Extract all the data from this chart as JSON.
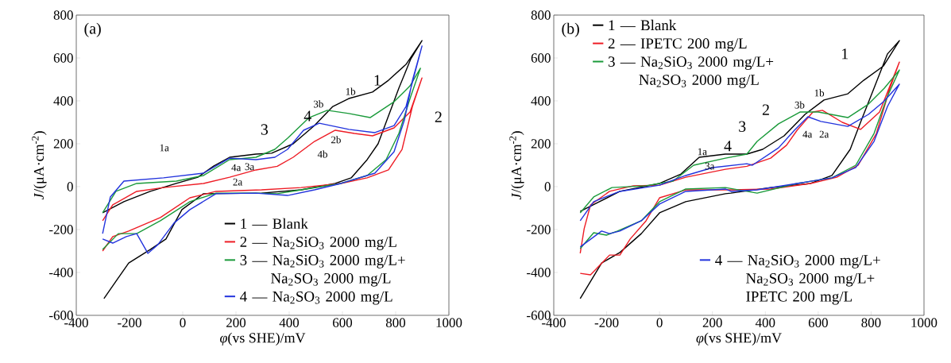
{
  "chart_data": [
    {
      "type": "line",
      "xlabel": "*φ*(vs SHE)/mV",
      "ylabel": "*J*/(μA·cm$^{-2}$)",
      "xlim": [
        -400,
        1000
      ],
      "ylim": [
        -600,
        800
      ],
      "xticks": [
        -400,
        -200,
        0,
        200,
        400,
        600,
        800,
        1000
      ],
      "yticks": [
        -600,
        -400,
        -200,
        0,
        200,
        400,
        600,
        800
      ],
      "legend": "bottom right",
      "annotations": [
        "(a)",
        "1",
        "2",
        "3",
        "4",
        "1a",
        "1b",
        "2a",
        "2b",
        "3a",
        "3b",
        "4a",
        "4b"
      ],
      "series": [
        {
          "name": "1 — Blank",
          "color": "#000000",
          "x": [
            -301,
            -221,
            -122,
            -24,
            57,
            116,
            176,
            275,
            334,
            415,
            495,
            564,
            624,
            713,
            773,
            839,
            899,
            857,
            812,
            764,
            734,
            693,
            633,
            573,
            445,
            296,
            78,
            -3,
            -63,
            -122,
            -203,
            -251,
            -296
          ],
          "values": [
            -122,
            -70,
            -22,
            15,
            44,
            96,
            137,
            152,
            156,
            200,
            285,
            374,
            411,
            441,
            496,
            570,
            681,
            596,
            459,
            300,
            200,
            126,
            41,
            15,
            -15,
            -30,
            -33,
            -107,
            -244,
            -293,
            -356,
            -441,
            -522
          ]
        },
        {
          "name": "2 — Na$_{2}$SiO$_{3}$ 2000 mg/L",
          "color": "#ee1c25",
          "x": [
            -301,
            -263,
            -173,
            -72,
            78,
            176,
            275,
            355,
            415,
            495,
            573,
            645,
            713,
            794,
            854,
            899,
            863,
            824,
            773,
            693,
            594,
            445,
            296,
            125,
            27,
            -84,
            -203,
            -263,
            -301
          ],
          "values": [
            -159,
            -85,
            -22,
            -4,
            15,
            44,
            78,
            95,
            137,
            211,
            263,
            248,
            237,
            274,
            348,
            507,
            374,
            174,
            78,
            41,
            15,
            -4,
            -15,
            -22,
            -52,
            -144,
            -207,
            -233,
            -300
          ]
        },
        {
          "name": "3 — Na$_{2}$SiO$_{3}$ 2000 mg/L+ Na$_{2}$SO$_{3}$ 2000 mg/L",
          "color": "#1a9a3a",
          "x": [
            -301,
            -251,
            -173,
            -24,
            78,
            176,
            275,
            346,
            394,
            475,
            543,
            624,
            704,
            794,
            854,
            893,
            857,
            812,
            764,
            693,
            594,
            445,
            355,
            275,
            125,
            27,
            -84,
            -173,
            -242,
            -301
          ],
          "values": [
            -122,
            -22,
            15,
            26,
            52,
            126,
            137,
            174,
            226,
            322,
            356,
            341,
            322,
            396,
            470,
            552,
            422,
            248,
            126,
            52,
            15,
            -15,
            -33,
            -30,
            -30,
            -70,
            -159,
            -219,
            -219,
            -293
          ]
        },
        {
          "name": "4 — Na$_{2}$SO$_{3}$ 2000 mg/L",
          "color": "#2233dd",
          "x": [
            -301,
            -272,
            -221,
            -72,
            78,
            176,
            275,
            346,
            394,
            454,
            513,
            624,
            722,
            794,
            839,
            899,
            863,
            833,
            794,
            722,
            594,
            495,
            394,
            275,
            125,
            27,
            -33,
            -93,
            -131,
            -173,
            -212,
            -263,
            -301
          ],
          "values": [
            -219,
            -48,
            26,
            41,
            63,
            133,
            126,
            137,
            174,
            263,
            296,
            267,
            252,
            285,
            374,
            656,
            496,
            311,
            163,
            63,
            15,
            -15,
            -41,
            -30,
            -33,
            -107,
            -170,
            -270,
            -311,
            -219,
            -233,
            -263,
            -244
          ]
        }
      ]
    },
    {
      "type": "line",
      "xlabel": "*φ*(vs SHE)/mV",
      "ylabel": "*J*/(μA·cm$^{-2}$)",
      "xlim": [
        -400,
        1000
      ],
      "ylim": [
        -600,
        800
      ],
      "xticks": [
        -400,
        -200,
        0,
        200,
        400,
        600,
        800,
        1000
      ],
      "yticks": [
        -600,
        -400,
        -200,
        0,
        200,
        400,
        600,
        800
      ],
      "legend": "top left",
      "annotations": [
        "(b)",
        "1",
        "2",
        "3",
        "4",
        "1a",
        "1b",
        "2a",
        "3a",
        "3b",
        "4a"
      ],
      "series": [
        {
          "name": "1 — Blank",
          "color": "#000000",
          "x": [
            -300,
            -150,
            0,
            81,
            150,
            249,
            330,
            390,
            471,
            550,
            622,
            712,
            772,
            847,
            907,
            862,
            811,
            760,
            721,
            652,
            571,
            420,
            270,
            249,
            99,
            0,
            -69,
            -150,
            -219,
            -300
          ],
          "values": [
            -115,
            -22,
            15,
            59,
            137,
            152,
            152,
            174,
            237,
            337,
            404,
            433,
            496,
            563,
            681,
            619,
            459,
            300,
            174,
            52,
            15,
            -4,
            -30,
            -33,
            -70,
            -122,
            -219,
            -307,
            -356,
            -522
          ]
        },
        {
          "name": "2 — IPETC 200 mg/L",
          "color": "#ee1c25",
          "x": [
            -300,
            -285,
            -261,
            -189,
            -99,
            0,
            99,
            249,
            330,
            420,
            480,
            520,
            580,
            616,
            691,
            760,
            832,
            907,
            871,
            820,
            751,
            670,
            571,
            420,
            270,
            99,
            0,
            -51,
            -111,
            -150,
            -189,
            -261,
            -300
          ],
          "values": [
            -311,
            -196,
            -85,
            -22,
            4,
            7,
            44,
            81,
            95,
            133,
            193,
            263,
            348,
            356,
            300,
            267,
            348,
            581,
            459,
            248,
            100,
            44,
            15,
            -11,
            -15,
            -15,
            -52,
            -159,
            -244,
            -319,
            -319,
            -411,
            -404
          ]
        },
        {
          "name": "3 — Na$_{2}$SiO$_{3}$ 2000 mg/L+ Na$_{2}$SO$_{3}$ 2000 mg/L",
          "color": "#1a9a3a",
          "x": [
            -300,
            -249,
            -180,
            -51,
            51,
            129,
            249,
            330,
            369,
            450,
            531,
            600,
            712,
            790,
            850,
            907,
            862,
            811,
            742,
            652,
            520,
            369,
            249,
            99,
            0,
            -69,
            -159,
            -201,
            -249,
            -300
          ],
          "values": [
            -122,
            -48,
            -4,
            4,
            26,
            100,
            133,
            152,
            211,
            293,
            348,
            348,
            322,
            385,
            459,
            544,
            422,
            248,
            100,
            41,
            15,
            -30,
            -4,
            -11,
            -70,
            -159,
            -207,
            -226,
            -215,
            -289
          ]
        },
        {
          "name": "4 — Na$_{2}$SiO$_{3}$ 2000 mg/L+ Na$_{2}$SO$_{3}$ 2000 mg/L+ IPETC 200 mg/L",
          "color": "#2233dd",
          "x": [
            -300,
            -249,
            -150,
            0,
            99,
            201,
            330,
            351,
            450,
            510,
            561,
            610,
            712,
            790,
            847,
            907,
            862,
            811,
            742,
            652,
            520,
            369,
            270,
            249,
            99,
            0,
            -69,
            -150,
            -189,
            -219,
            -300
          ],
          "values": [
            -159,
            -70,
            -22,
            7,
            52,
            89,
            107,
            100,
            181,
            263,
            326,
            304,
            281,
            337,
            396,
            478,
            374,
            211,
            89,
            41,
            15,
            -15,
            -22,
            -11,
            -22,
            -81,
            -159,
            -207,
            -219,
            -207,
            -281
          ]
        }
      ]
    }
  ]
}
